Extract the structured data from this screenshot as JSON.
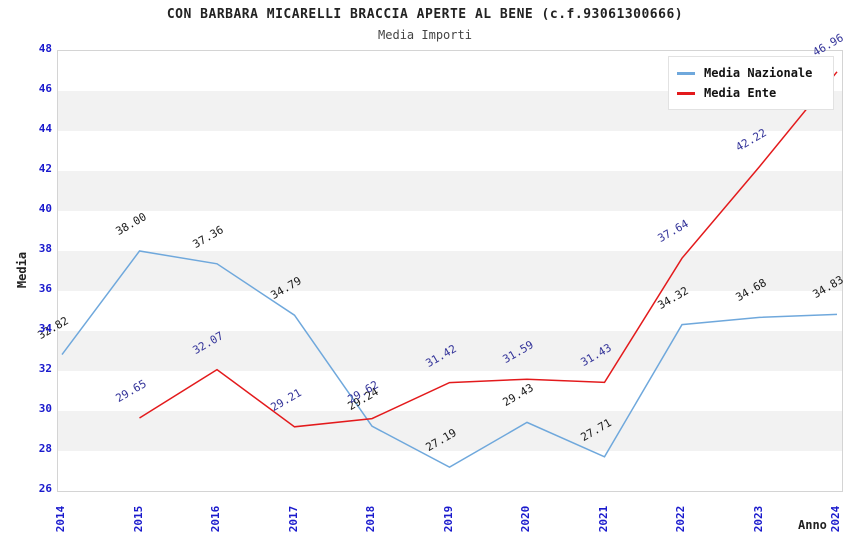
{
  "chart_data": {
    "type": "line",
    "title": "CON BARBARA MICARELLI BRACCIA APERTE AL BENE (c.f.93061300666)",
    "subtitle": "Media Importi",
    "xlabel": "Anno",
    "ylabel": "Media",
    "ylim": [
      26,
      48
    ],
    "ytick_step": 2,
    "grid": "alternating-horizontal-bands",
    "legend_position": "top-right",
    "categories": [
      "2014",
      "2015",
      "2016",
      "2017",
      "2018",
      "2019",
      "2020",
      "2021",
      "2022",
      "2023",
      "2024"
    ],
    "series": [
      {
        "name": "Media Nazionale",
        "color": "#6fa8dc",
        "label_color": "#1a1a1a",
        "values": [
          32.82,
          38.0,
          37.36,
          34.79,
          29.24,
          27.19,
          29.43,
          27.71,
          34.32,
          34.68,
          34.83
        ]
      },
      {
        "name": "Media Ente",
        "color": "#e31a1c",
        "label_color": "#333399",
        "values": [
          null,
          29.65,
          32.07,
          29.21,
          29.62,
          31.42,
          31.59,
          31.43,
          37.64,
          42.22,
          46.96
        ]
      }
    ],
    "colors": {
      "tick_label": "#1a1acd",
      "band_fill": "#f2f2f2",
      "plot_border": "#d4d4d4",
      "title_text": "#222222"
    }
  }
}
